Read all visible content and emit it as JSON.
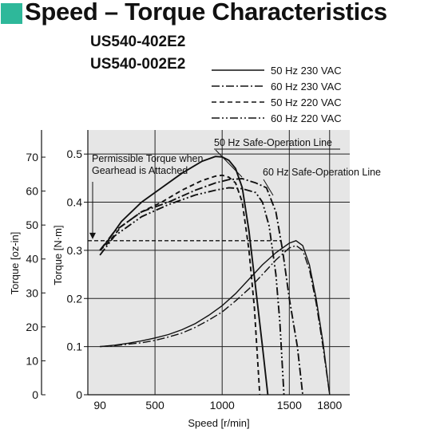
{
  "header": {
    "title": "Speed – Torque Characteristics",
    "accent_color": "#2eb89a"
  },
  "models": [
    "US540-402E2",
    "US540-002E2"
  ],
  "chart_data": {
    "type": "line",
    "xlabel": "Speed [r/min]",
    "ylabel": "Torque [N·m]",
    "ylabel_secondary": "Torque [oz-in]",
    "xlim": [
      0,
      1950
    ],
    "ylim": [
      0,
      0.55
    ],
    "y2lim": [
      0,
      78
    ],
    "x_ticks": [
      90,
      500,
      1000,
      1500,
      1800
    ],
    "y_ticks": [
      0,
      0.1,
      0.2,
      0.3,
      0.4,
      0.5
    ],
    "y2_ticks": [
      0,
      10,
      20,
      30,
      40,
      50,
      60,
      70
    ],
    "grid": true,
    "background": "#e6e6e6",
    "legend_position": "top-right",
    "series": [
      {
        "name": "50 Hz 230 VAC",
        "dash": "solid",
        "x": [
          90,
          150,
          250,
          400,
          550,
          700,
          850,
          950,
          1000,
          1050,
          1100,
          1150,
          1200,
          1250,
          1300,
          1340
        ],
        "y": [
          0.3,
          0.32,
          0.36,
          0.4,
          0.43,
          0.46,
          0.485,
          0.495,
          0.494,
          0.487,
          0.47,
          0.43,
          0.34,
          0.22,
          0.1,
          0.0
        ]
      },
      {
        "name": "60 Hz 230 VAC",
        "dash": "dashdot",
        "x": [
          90,
          200,
          400,
          600,
          800,
          950,
          1050,
          1150,
          1250,
          1330,
          1400,
          1450,
          1500,
          1560,
          1600
        ],
        "y": [
          0.3,
          0.34,
          0.38,
          0.4,
          0.425,
          0.44,
          0.447,
          0.449,
          0.44,
          0.43,
          0.38,
          0.3,
          0.2,
          0.1,
          0.0
        ]
      },
      {
        "name": "50 Hz 220 VAC",
        "dash": "dashed",
        "x": [
          90,
          150,
          250,
          400,
          550,
          700,
          850,
          950,
          1000,
          1050,
          1100,
          1150,
          1200,
          1240,
          1280
        ],
        "y": [
          0.3,
          0.315,
          0.35,
          0.38,
          0.4,
          0.425,
          0.445,
          0.454,
          0.456,
          0.452,
          0.44,
          0.4,
          0.3,
          0.18,
          0.0
        ]
      },
      {
        "name": "60 Hz 220 VAC",
        "dash": "dashdotdot",
        "x": [
          90,
          200,
          400,
          600,
          800,
          950,
          1050,
          1150,
          1250,
          1300,
          1350,
          1400,
          1430,
          1460
        ],
        "y": [
          0.29,
          0.33,
          0.37,
          0.395,
          0.415,
          0.425,
          0.43,
          0.428,
          0.42,
          0.4,
          0.35,
          0.25,
          0.15,
          0.0
        ]
      }
    ],
    "safe_operation_lines": [
      {
        "label": "50 Hz Safe-Operation Line",
        "x": [
          90,
          200,
          300,
          400,
          500,
          600,
          700,
          800,
          900,
          1000,
          1100,
          1200,
          1300,
          1400,
          1500,
          1550,
          1600,
          1650,
          1700,
          1750,
          1800
        ],
        "y": [
          0.1,
          0.103,
          0.107,
          0.112,
          0.118,
          0.125,
          0.135,
          0.148,
          0.165,
          0.185,
          0.21,
          0.24,
          0.27,
          0.295,
          0.315,
          0.32,
          0.31,
          0.27,
          0.2,
          0.11,
          0.0
        ]
      },
      {
        "label": "60 Hz Safe-Operation Line",
        "x": [
          90,
          200,
          300,
          400,
          500,
          600,
          700,
          800,
          900,
          1000,
          1100,
          1200,
          1300,
          1400,
          1500,
          1550,
          1600,
          1650,
          1700,
          1750,
          1800
        ],
        "y": [
          0.1,
          0.102,
          0.105,
          0.108,
          0.113,
          0.12,
          0.128,
          0.14,
          0.155,
          0.172,
          0.195,
          0.22,
          0.25,
          0.28,
          0.305,
          0.31,
          0.3,
          0.26,
          0.19,
          0.1,
          0.0
        ]
      }
    ],
    "permissible_torque": {
      "label": "Permissible Torque when Gearhead is Attached",
      "value": 0.32
    }
  }
}
